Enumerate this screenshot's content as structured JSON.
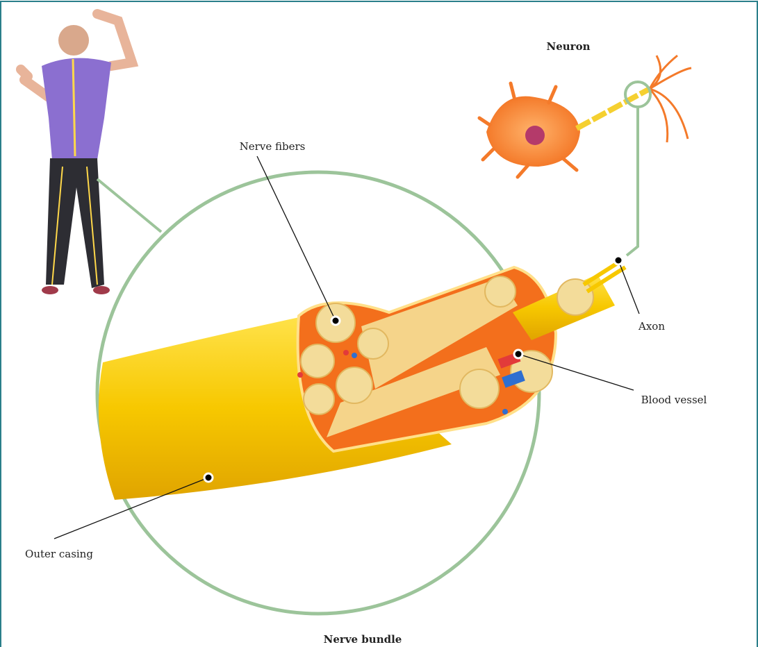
{
  "title": "Nerve bundle",
  "neuron_label": "Neuron",
  "callouts": [
    "Nerve fibers",
    "Axon",
    "Blood vessel",
    "Outer casing"
  ]
}
